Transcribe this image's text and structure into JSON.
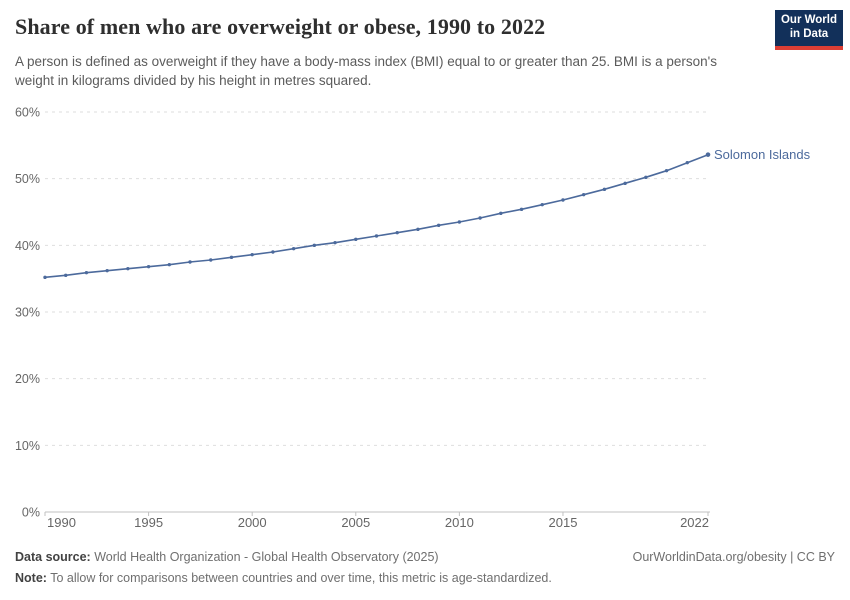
{
  "header": {
    "title": "Share of men who are overweight or obese, 1990 to 2022",
    "subtitle": "A person is defined as overweight if they have a body-mass index (BMI) equal to or greater than 25. BMI is a person's weight in kilograms divided by his height in metres squared.",
    "logo": {
      "line1": "Our World",
      "line2": "in Data"
    }
  },
  "chart_data": {
    "type": "line",
    "title": "Share of men who are overweight or obese, 1990 to 2022",
    "xlabel": "",
    "ylabel": "",
    "xlim": [
      1990,
      2022
    ],
    "ylim": [
      0,
      60
    ],
    "x_ticks": [
      1990,
      1995,
      2000,
      2005,
      2010,
      2015,
      2022
    ],
    "y_ticks": [
      0,
      10,
      20,
      30,
      40,
      50,
      60
    ],
    "y_tick_suffix": "%",
    "grid": "horizontal-dashed",
    "legend": "end-of-line-label",
    "series": [
      {
        "name": "Solomon Islands",
        "color": "#4C6A9C",
        "x": [
          1990,
          1991,
          1992,
          1993,
          1994,
          1995,
          1996,
          1997,
          1998,
          1999,
          2000,
          2001,
          2002,
          2003,
          2004,
          2005,
          2006,
          2007,
          2008,
          2009,
          2010,
          2011,
          2012,
          2013,
          2014,
          2015,
          2016,
          2017,
          2018,
          2019,
          2020,
          2021,
          2022
        ],
        "values": [
          35.2,
          35.5,
          35.9,
          36.2,
          36.5,
          36.8,
          37.1,
          37.5,
          37.8,
          38.2,
          38.6,
          39.0,
          39.5,
          40.0,
          40.4,
          40.9,
          41.4,
          41.9,
          42.4,
          43.0,
          43.5,
          44.1,
          44.8,
          45.4,
          46.1,
          46.8,
          47.6,
          48.4,
          49.3,
          50.2,
          51.2,
          52.4,
          53.6
        ]
      }
    ]
  },
  "footer": {
    "datasource_label": "Data source:",
    "datasource_text": " World Health Organization - Global Health Observatory (2025)",
    "note_label": "Note:",
    "note_text": " To allow for comparisons between countries and over time, this metric is age-standardized.",
    "link": "OurWorldinData.org/obesity | CC BY"
  },
  "colors": {
    "line": "#4C6A9C",
    "gridline": "#dedede",
    "axis": "#c0c0c0",
    "tick_label": "#666666",
    "logo_bg": "#12305a",
    "logo_stripe": "#dc3e34"
  }
}
